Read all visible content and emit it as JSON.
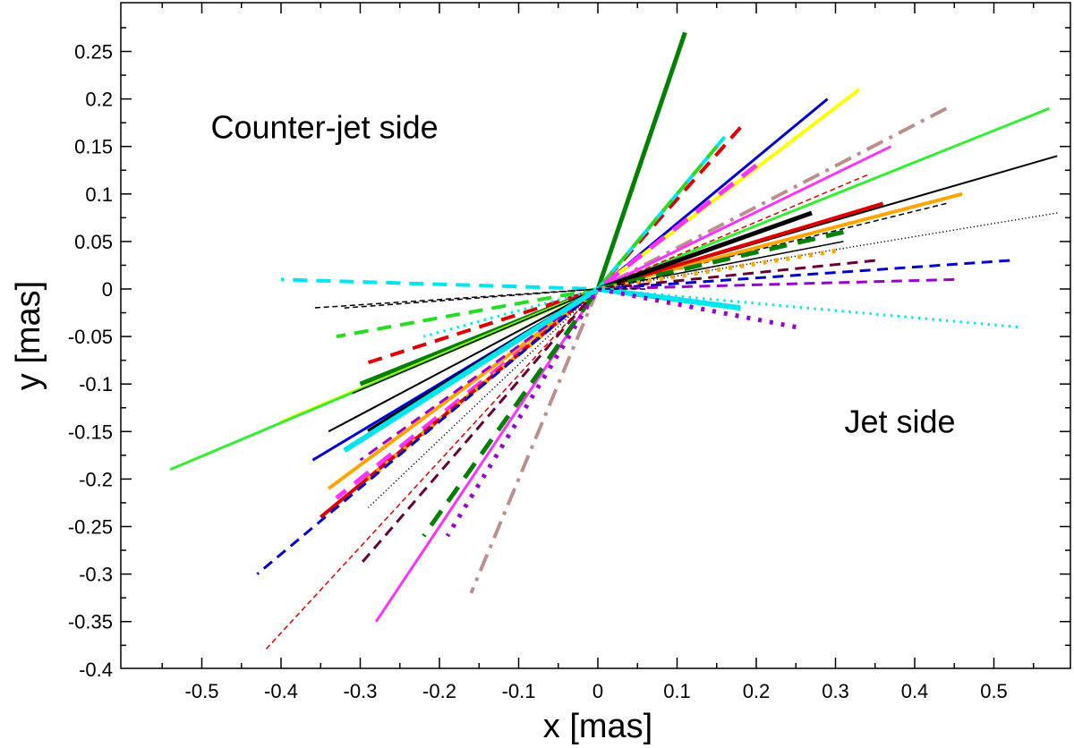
{
  "chart_data": {
    "type": "line",
    "title": "",
    "xlabel": "x [mas]",
    "ylabel": "y [mas]",
    "xlim": [
      -0.6,
      0.6
    ],
    "ylim": [
      -0.4,
      0.28
    ],
    "x_ticks": [
      -0.5,
      -0.4,
      -0.3,
      -0.2,
      -0.1,
      0,
      0.1,
      0.2,
      0.3,
      0.4,
      0.5
    ],
    "x_tick_labels": [
      "-0.5",
      "-0.4",
      "-0.3",
      "-0.2",
      "-0.1",
      "0",
      "0.1",
      "0.2",
      "0.3",
      "0.4",
      "0.5"
    ],
    "y_ticks": [
      -0.4,
      -0.35,
      -0.3,
      -0.25,
      -0.2,
      -0.15,
      -0.1,
      -0.05,
      0,
      0.05,
      0.1,
      0.15,
      0.2,
      0.25
    ],
    "y_tick_labels": [
      "-0.4",
      "-0.35",
      "-0.3",
      "-0.25",
      "-0.2",
      "-0.15",
      "-0.1",
      "-0.05",
      "0",
      "0.05",
      "0.1",
      "0.15",
      "0.2",
      "0.25"
    ],
    "grid": false,
    "annotations": [
      {
        "text": "Counter-jet side",
        "x": -0.5,
        "y": 0.17
      },
      {
        "text": "Jet side",
        "x": 0.3,
        "y": -0.14
      }
    ],
    "series": [
      {
        "color": "#008000",
        "style": "solid",
        "width": 5,
        "x": [
          0.11,
          0,
          -0.3
        ],
        "y": [
          0.27,
          0,
          -0.1
        ]
      },
      {
        "color": "#0000cc",
        "style": "solid",
        "width": 3,
        "x": [
          0.29,
          0,
          -0.36
        ],
        "y": [
          0.2,
          0,
          -0.18
        ]
      },
      {
        "color": "#ffff00",
        "style": "solid",
        "width": 4,
        "x": [
          0.33,
          0,
          -0.4
        ],
        "y": [
          0.21,
          0,
          -0.14
        ]
      },
      {
        "color": "#33ee33",
        "style": "solid",
        "width": 3,
        "x": [
          0.57,
          0,
          -0.54
        ],
        "y": [
          0.19,
          0,
          -0.19
        ]
      },
      {
        "color": "#000000",
        "style": "solid",
        "width": 2,
        "x": [
          0.58,
          0,
          -0.34
        ],
        "y": [
          0.14,
          0,
          -0.15
        ]
      },
      {
        "color": "#bc8f8f",
        "style": "dashdot",
        "width": 4,
        "x": [
          0.44,
          0,
          -0.16
        ],
        "y": [
          0.19,
          0,
          -0.32
        ]
      },
      {
        "color": "#dd0000",
        "style": "dashed",
        "width": 4,
        "x": [
          0.18,
          0,
          -0.3
        ],
        "y": [
          0.17,
          0,
          -0.08
        ]
      },
      {
        "color": "#00e5ee",
        "style": "dashed",
        "width": 4,
        "x": [
          0.16,
          0,
          -0.4
        ],
        "y": [
          0.16,
          0,
          0.01
        ]
      },
      {
        "color": "#22dd22",
        "style": "dashed",
        "width": 4,
        "x": [
          0.15,
          0,
          -0.33
        ],
        "y": [
          0.15,
          0,
          -0.05
        ]
      },
      {
        "color": "#ff33ff",
        "style": "solid",
        "width": 3,
        "x": [
          0.37,
          0,
          -0.28
        ],
        "y": [
          0.15,
          0,
          -0.35
        ]
      },
      {
        "color": "#ff33ff",
        "style": "dashed",
        "width": 5,
        "x": [
          0.2,
          0,
          -0.33
        ],
        "y": [
          0.13,
          0,
          -0.22
        ]
      },
      {
        "color": "#dd0000",
        "style": "dashed",
        "width": 1.5,
        "x": [
          0.34,
          0,
          -0.42
        ],
        "y": [
          0.12,
          0,
          -0.38
        ]
      },
      {
        "color": "#000000",
        "style": "dashed",
        "width": 1.5,
        "x": [
          0.44,
          0,
          -0.36
        ],
        "y": [
          0.09,
          0,
          -0.02
        ]
      },
      {
        "color": "#ffa500",
        "style": "solid",
        "width": 4,
        "x": [
          0.46,
          0,
          -0.34
        ],
        "y": [
          0.1,
          0,
          -0.21
        ]
      },
      {
        "color": "#dd0000",
        "style": "solid",
        "width": 4,
        "x": [
          0.36,
          0,
          -0.35
        ],
        "y": [
          0.09,
          0,
          -0.24
        ]
      },
      {
        "color": "#000000",
        "style": "solid",
        "width": 5,
        "x": [
          0.27,
          0,
          -0.29
        ],
        "y": [
          0.08,
          0,
          -0.15
        ]
      },
      {
        "color": "#008000",
        "style": "dashed",
        "width": 5,
        "x": [
          0.31,
          0,
          -0.22
        ],
        "y": [
          0.06,
          0,
          -0.26
        ]
      },
      {
        "color": "#000000",
        "style": "solid",
        "width": 1.5,
        "x": [
          0.31,
          0,
          -0.31
        ],
        "y": [
          0.05,
          0,
          -0.11
        ]
      },
      {
        "color": "#000000",
        "style": "dotted",
        "width": 1.5,
        "x": [
          0.58,
          0,
          -0.29
        ],
        "y": [
          0.08,
          0,
          -0.23
        ]
      },
      {
        "color": "#ffa500",
        "style": "dotted",
        "width": 5,
        "x": [
          0.3,
          0,
          -0.29
        ],
        "y": [
          0.04,
          0,
          -0.2
        ]
      },
      {
        "color": "#660033",
        "style": "dashed",
        "width": 3,
        "x": [
          0.35,
          0,
          -0.3
        ],
        "y": [
          0.03,
          0,
          -0.29
        ]
      },
      {
        "color": "#0000cc",
        "style": "dashed",
        "width": 3,
        "x": [
          0.52,
          0,
          -0.43
        ],
        "y": [
          0.03,
          0,
          -0.3
        ]
      },
      {
        "color": "#9900cc",
        "style": "dashed",
        "width": 3,
        "x": [
          0.45,
          0,
          -0.3
        ],
        "y": [
          0.01,
          0,
          -0.18
        ]
      },
      {
        "color": "#00e5ee",
        "style": "solid",
        "width": 6,
        "x": [
          0.18,
          0,
          -0.32
        ],
        "y": [
          -0.02,
          0,
          -0.17
        ]
      },
      {
        "color": "#00e5ee",
        "style": "dotted",
        "width": 3,
        "x": [
          0.53,
          0,
          -0.22
        ],
        "y": [
          -0.04,
          0,
          -0.05
        ]
      },
      {
        "color": "#9900cc",
        "style": "dotted",
        "width": 5,
        "x": [
          0.25,
          0,
          -0.19
        ],
        "y": [
          -0.04,
          0,
          -0.26
        ]
      },
      {
        "color": "#000000",
        "style": "dashed",
        "width": 1.5,
        "x": [
          0.06,
          0,
          -0.32
        ],
        "y": [
          0,
          0,
          -0.02
        ]
      }
    ]
  }
}
